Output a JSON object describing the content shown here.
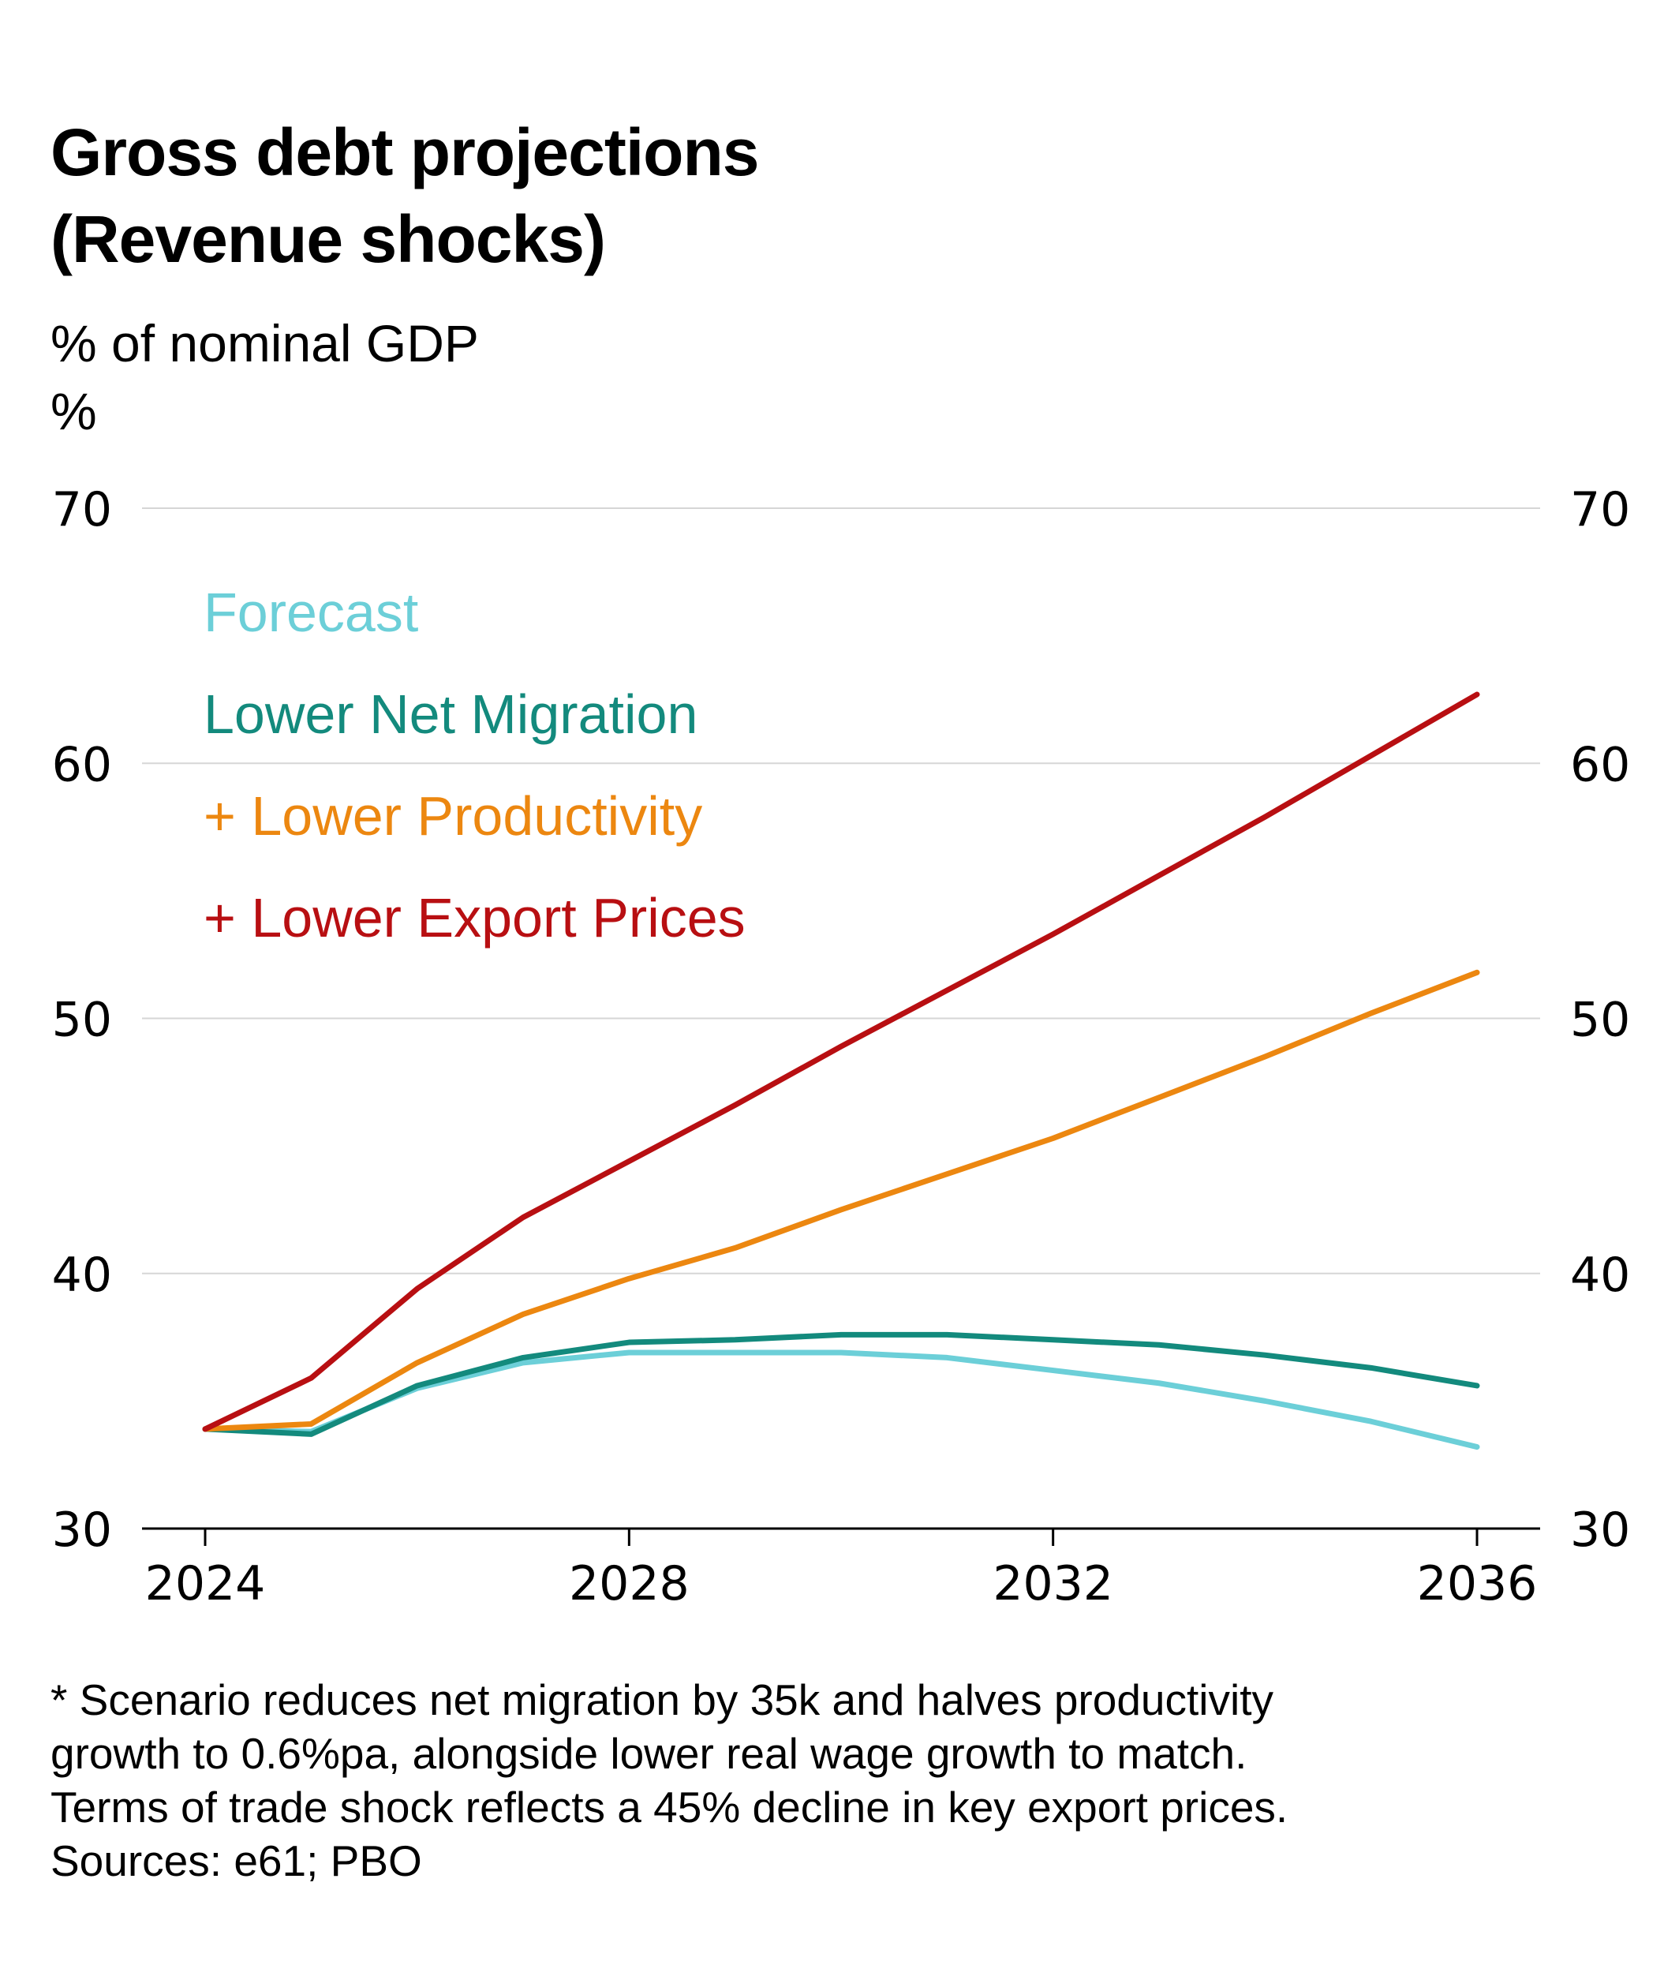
{
  "title_lines": [
    "Gross debt projections",
    "(Revenue shocks)"
  ],
  "subtitle": "% of nominal GDP",
  "unit": "%",
  "footnote_lines": [
    "* Scenario reduces net migration by 35k and halves productivity",
    "growth to 0.6%pa, alongside lower real wage growth to match.",
    "Terms of trade shock reflects a 45% decline in key export prices.",
    "Sources: e61; PBO"
  ],
  "chart_data": {
    "type": "line",
    "x": [
      2024,
      2025,
      2026,
      2027,
      2028,
      2029,
      2030,
      2031,
      2032,
      2033,
      2034,
      2035,
      2036
    ],
    "xticks": [
      "2024",
      "2028",
      "2032",
      "2036"
    ],
    "yticks": [
      "30",
      "40",
      "50",
      "60",
      "70"
    ],
    "xlim": [
      2024,
      2036
    ],
    "ylim": [
      30,
      70
    ],
    "grid": true,
    "legend_position": "top-left",
    "series": [
      {
        "name": "Forecast",
        "color": "#6ccfd8",
        "values": [
          33.9,
          33.8,
          35.5,
          36.5,
          36.9,
          36.9,
          36.9,
          36.7,
          36.2,
          35.7,
          35.0,
          34.2,
          33.2
        ]
      },
      {
        "name": "Lower Net Migration",
        "color": "#138a7d",
        "values": [
          33.9,
          33.7,
          35.6,
          36.7,
          37.3,
          37.4,
          37.6,
          37.6,
          37.4,
          37.2,
          36.8,
          36.3,
          35.6
        ]
      },
      {
        "name": "+ Lower Productivity",
        "color": "#ec8710",
        "values": [
          33.9,
          34.1,
          36.5,
          38.4,
          39.8,
          41.0,
          42.5,
          43.9,
          45.3,
          46.9,
          48.5,
          50.2,
          51.8
        ]
      },
      {
        "name": "+ Lower Export Prices",
        "color": "#b80f12",
        "values": [
          33.9,
          35.9,
          39.4,
          42.2,
          44.4,
          46.6,
          48.9,
          51.1,
          53.3,
          55.6,
          57.9,
          60.3,
          62.7
        ]
      }
    ]
  }
}
